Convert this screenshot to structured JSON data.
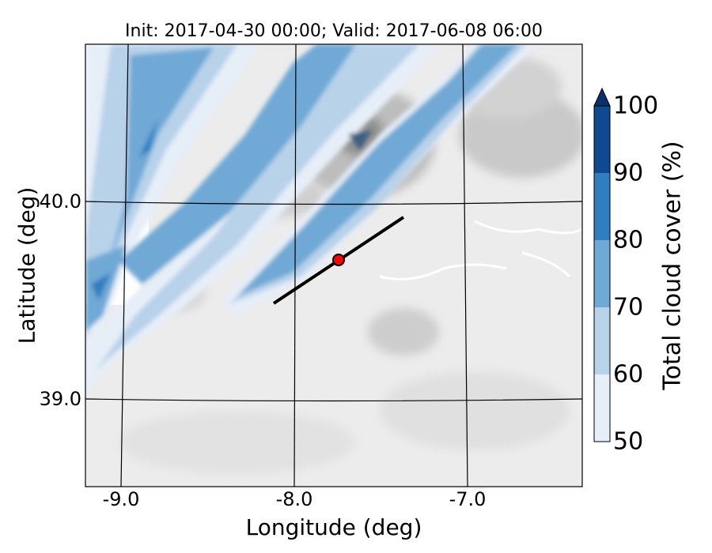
{
  "title": "Init: 2017-04-30 00:00; Valid: 2017-06-08 06:00",
  "xlabel": "Longitude (deg)",
  "ylabel": "Latitude (deg)",
  "x_ticks": [
    "-9.0",
    "-8.0",
    "-7.0"
  ],
  "y_ticks": [
    "40.0",
    "39.0"
  ],
  "colorbar": {
    "label": "Total cloud cover (%)",
    "ticks": [
      "50",
      "60",
      "70",
      "80",
      "90",
      "100"
    ],
    "colors": [
      "#e6eef8",
      "#b8d2ea",
      "#6fa9d6",
      "#2f7fc0",
      "#0e4a92",
      "#08306b"
    ],
    "extend": "max"
  },
  "map": {
    "lon_range": [
      -9.25,
      -6.4
    ],
    "lat_range": [
      38.55,
      40.8
    ],
    "terrain_color": "#e8e8e8",
    "marker": {
      "lon": -7.75,
      "lat": 39.7,
      "color": "#ff0000"
    },
    "cross_section_line": {
      "start": [
        -8.12,
        39.47
      ],
      "end": [
        -7.37,
        39.92
      ],
      "color": "#000000"
    }
  }
}
